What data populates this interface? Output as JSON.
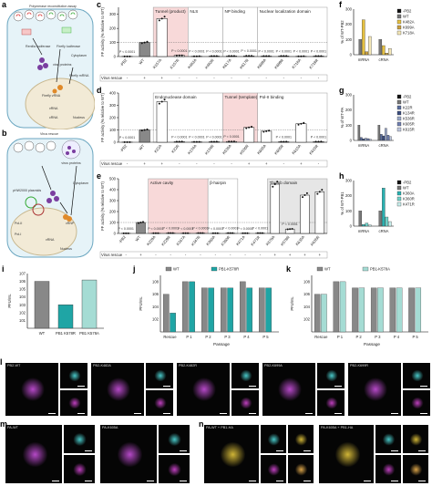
{
  "panels": {
    "a": {
      "letter": "a",
      "title": "Polymerase reconstitution assay",
      "labels": [
        "Renilla luciferase",
        "Firefly luciferase",
        "viral proteins",
        "Firefly mRNA",
        "Cytoplasm",
        "Nucleus",
        "Firefly vRNA",
        "vRNA",
        "cRNA"
      ]
    },
    "b": {
      "letter": "b",
      "title": "Virus rescue",
      "labels": [
        "virus proteins",
        "pHW2000 plasmids",
        "Pol-II",
        "Pol-I",
        "Cytoplasm",
        "Nucleus",
        "vRNP",
        "vRNA"
      ]
    },
    "c": {
      "letter": "c",
      "ylabel": "FF activity (% relative to WT)",
      "domains": [
        "Tunnel (product)",
        "NLS",
        "NP binding",
        "Nuclear localization domain"
      ],
      "categories": [
        "-PB2",
        "WT",
        "K157A",
        "K157R",
        "K482A",
        "K482R",
        "K617A",
        "K617R",
        "K699A",
        "K699R",
        "K718A",
        "K718R"
      ],
      "values": [
        1,
        100,
        270,
        8,
        2,
        3,
        4,
        5,
        3,
        4,
        2,
        3
      ],
      "rescue": [
        "-",
        "+",
        "+",
        "-",
        "-",
        "-",
        "-",
        "-",
        "-",
        "-",
        "-",
        "-"
      ],
      "p_label": "P = 0.0001",
      "rescue_label": "Virus rescue"
    },
    "d": {
      "letter": "d",
      "ylabel": "FF activity (% relative to WT)",
      "domains": [
        "Endonuclease domain",
        "Tunnel (template)",
        "Pol-II binding"
      ],
      "categories": [
        "-PB2",
        "WT",
        "K22A",
        "K22R",
        "K134A",
        "K134R",
        "K536A",
        "K536R",
        "K605A",
        "K605R",
        "K615A",
        "K615R"
      ],
      "values": [
        1,
        100,
        330,
        5,
        3,
        4,
        6,
        120,
        90,
        4,
        150,
        5
      ],
      "rescue": [
        "-",
        "+",
        "+",
        "-",
        "-",
        "-",
        "-",
        "+",
        "+",
        "-",
        "+",
        "-"
      ]
    },
    "e": {
      "letter": "e",
      "ylabel": "FF activity (% relative to WT)",
      "domains": [
        "Active cavity",
        "β-hairpin",
        "Thumb domain"
      ],
      "categories": [
        "-PB2",
        "WT",
        "K229A",
        "K229R",
        "K347A",
        "K347R",
        "K360A",
        "K360R",
        "K471A",
        "K471R",
        "K578A",
        "K578R",
        "K635A",
        "K635R"
      ],
      "values": [
        1,
        100,
        2,
        3,
        2,
        3,
        2,
        3,
        2,
        3,
        450,
        40,
        350,
        380
      ],
      "rescue": [
        "-",
        "+",
        "-",
        "-",
        "-",
        "-",
        "-",
        "-",
        "-",
        "-",
        "+",
        "+",
        "+",
        "+"
      ]
    },
    "f": {
      "letter": "f",
      "ylabel": "% of WT-PB2",
      "groups": [
        "mRNA",
        "cRNA"
      ],
      "legend": [
        "-PB2",
        "WT",
        "K482A",
        "K699A",
        "K718A"
      ],
      "colors": [
        "#111111",
        "#777777",
        "#e5c040",
        "#c89e40",
        "#f3e6b6"
      ]
    },
    "g": {
      "letter": "g",
      "ylabel": "% of WT-PA",
      "groups": [
        "mRNA",
        "cRNA"
      ],
      "legend": [
        "-PB2",
        "WT",
        "K22R",
        "K134R",
        "K536R",
        "K605R",
        "K615R"
      ],
      "colors": [
        "#111111",
        "#777777",
        "#5b6e9e",
        "#3b4d7e",
        "#9aa8c8",
        "#6f7fb0",
        "#bfc8de"
      ]
    },
    "h": {
      "letter": "h",
      "ylabel": "% of WT-PB1",
      "groups": [
        "mRNA",
        "cRNA"
      ],
      "legend": [
        "-PB2",
        "WT",
        "K360A",
        "K360R",
        "K471R"
      ],
      "colors": [
        "#111111",
        "#777777",
        "#2ab1b1",
        "#6fd0c8",
        "#c7ecea"
      ]
    },
    "i": {
      "letter": "i",
      "ylabel": "PFU/mL",
      "categories": [
        "WT",
        "PB1 K578R",
        "PB1 K578A"
      ],
      "values": [
        1000000.0,
        1000.0,
        1500000.0
      ],
      "colors": [
        "#888888",
        "#1fa5a5",
        "#a5dcd4"
      ]
    },
    "j": {
      "letter": "j",
      "ylabel": "PFU/mL",
      "xlabel": "Passage",
      "legend": [
        "WT",
        "PB1-K578R"
      ],
      "categories": [
        "Rescue",
        "P 1",
        "P 2",
        "P 3",
        "P 4",
        "P 5"
      ],
      "series": [
        {
          "name": "WT",
          "values": [
            1000000.0,
            100000000.0,
            10000000.0,
            10000000.0,
            100000000.0,
            10000000.0
          ]
        },
        {
          "name": "PB1-K578R",
          "values": [
            1000.0,
            100000000.0,
            10000000.0,
            10000000.0,
            10000000.0,
            10000000.0
          ]
        }
      ],
      "colors": [
        "#888888",
        "#1fa5a5"
      ]
    },
    "k": {
      "letter": "k",
      "ylabel": "PFU/mL",
      "xlabel": "Passage",
      "legend": [
        "WT",
        "PB1-K578A"
      ],
      "categories": [
        "Rescue",
        "P 1",
        "P 2",
        "P 3",
        "P 4",
        "P 5"
      ],
      "series": [
        {
          "name": "WT",
          "values": [
            1000000.0,
            100000000.0,
            10000000.0,
            10000000.0,
            10000000.0,
            10000000.0
          ]
        },
        {
          "name": "PB1-K578A",
          "values": [
            1000000.0,
            100000000.0,
            10000000.0,
            10000000.0,
            10000000.0,
            10000000.0
          ]
        }
      ],
      "colors": [
        "#888888",
        "#a5dcd4"
      ]
    },
    "l": {
      "letter": "l",
      "images": [
        "PB2-WT",
        "PB2-K482A",
        "PB2-K482R",
        "PB2-K699A",
        "PB2-K699R"
      ],
      "channel": "Dapi"
    },
    "m": {
      "letter": "m",
      "images": [
        "PA-WT",
        "PA-K605A"
      ],
      "channel": "Dapi"
    },
    "n": {
      "letter": "n",
      "images": [
        "PA-WT + PB1-HA",
        "PA-K605A + PB1-HA"
      ],
      "channel": "Dapi"
    }
  }
}
